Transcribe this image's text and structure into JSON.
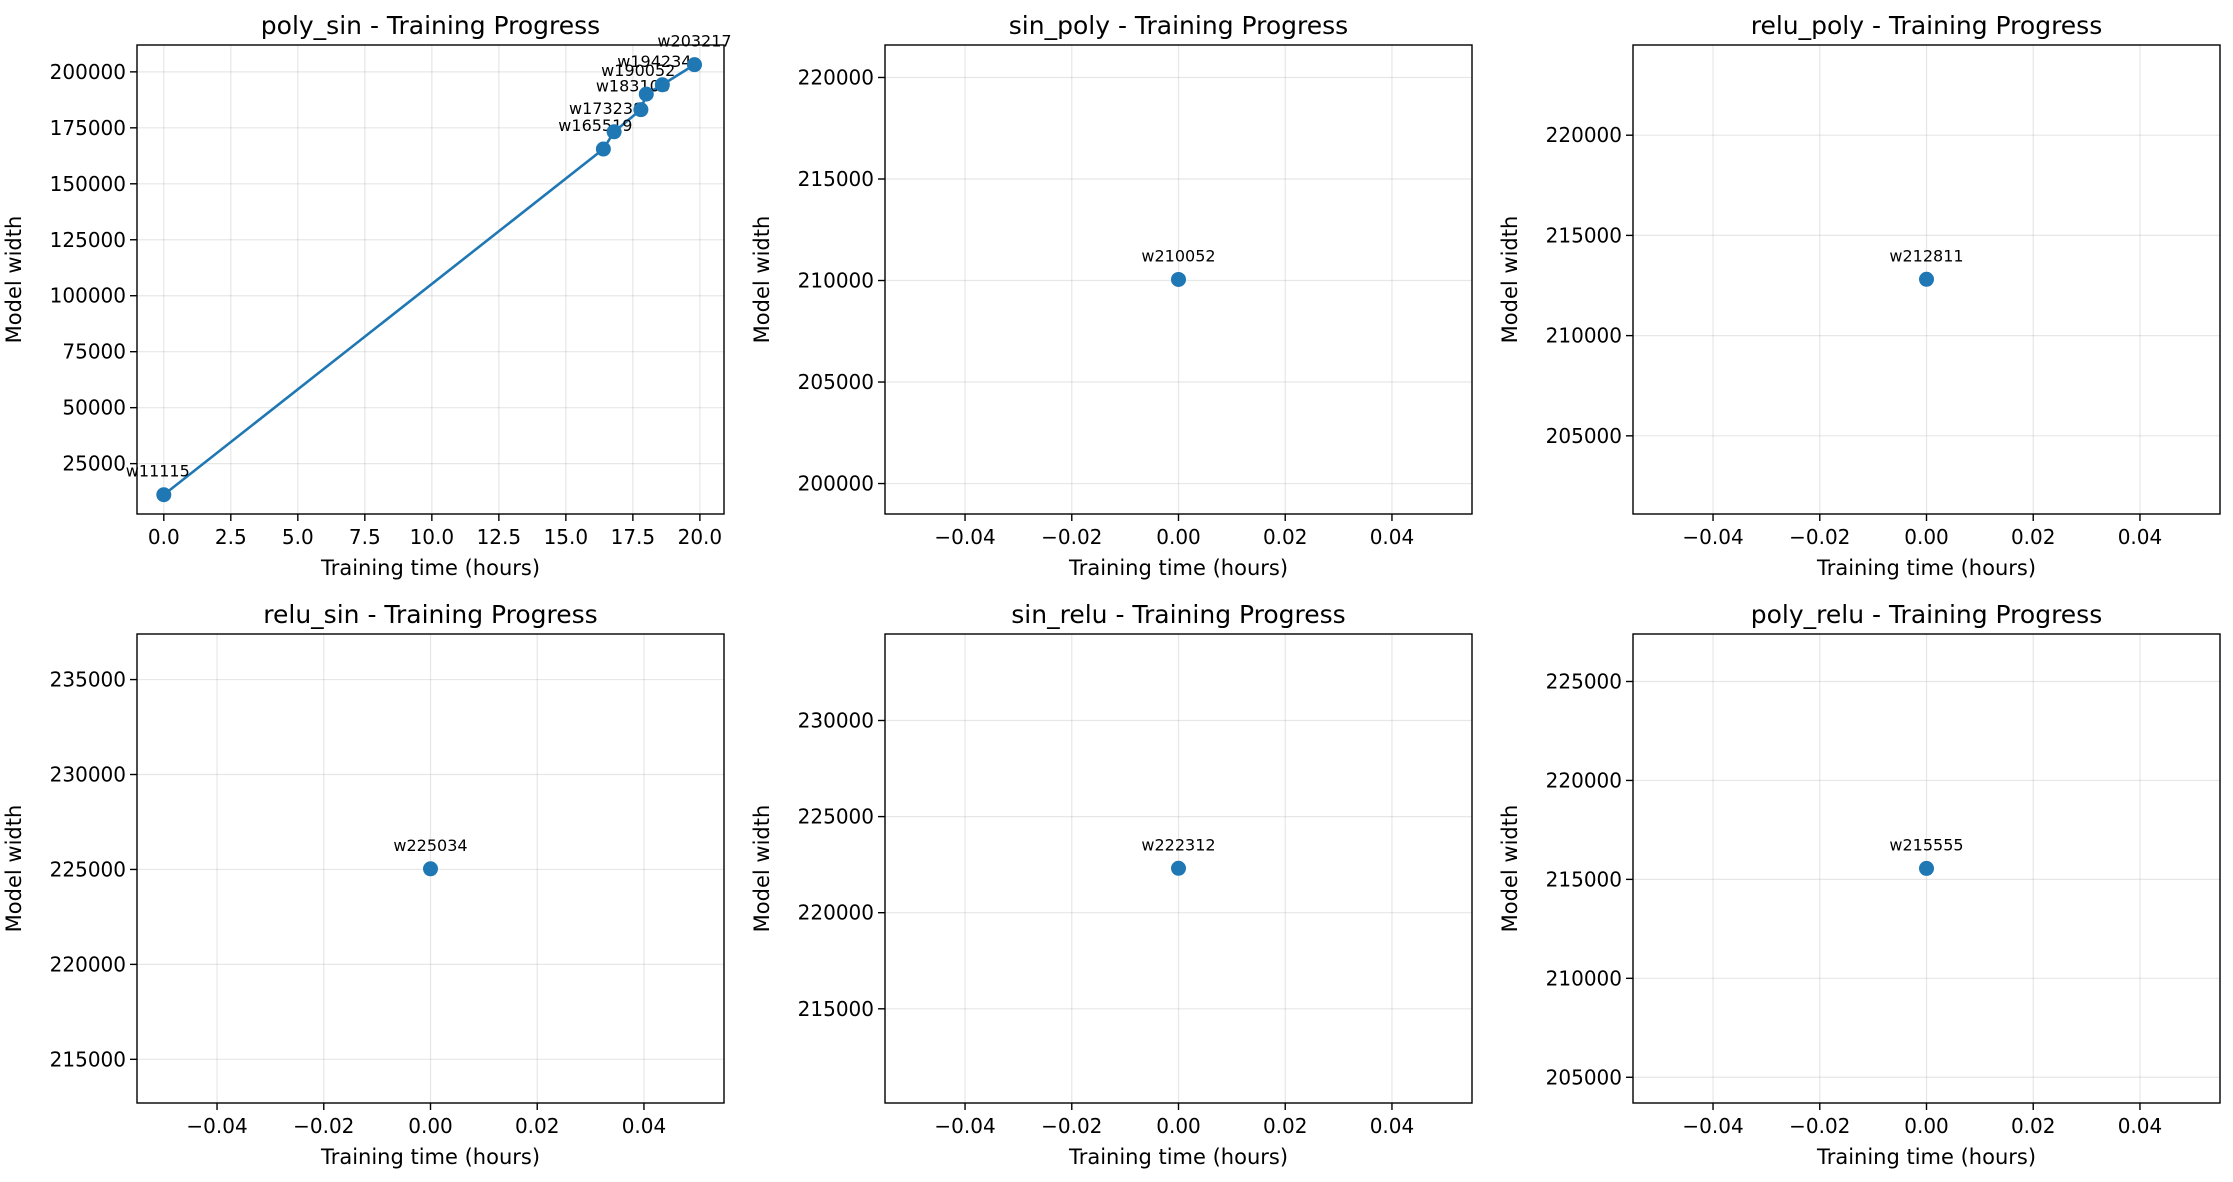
{
  "chart_data": [
    {
      "type": "line",
      "title": "poly_sin - Training Progress",
      "xlabel": "Training time (hours)",
      "ylabel": "Model width",
      "xlim": [
        -1.0,
        20.9
      ],
      "ylim": [
        2500,
        212000
      ],
      "xticks": [
        0.0,
        2.5,
        5.0,
        7.5,
        10.0,
        12.5,
        15.0,
        17.5,
        20.0
      ],
      "xtick_labels": [
        "0.0",
        "2.5",
        "5.0",
        "7.5",
        "10.0",
        "12.5",
        "15.0",
        "17.5",
        "20.0"
      ],
      "yticks": [
        25000,
        50000,
        75000,
        100000,
        125000,
        150000,
        175000,
        200000
      ],
      "ytick_labels": [
        "25000",
        "50000",
        "75000",
        "100000",
        "125000",
        "150000",
        "175000",
        "200000"
      ],
      "grid": true,
      "color": "#1f77b4",
      "points": [
        {
          "x": 0.0,
          "y": 11115,
          "label": "w11115"
        },
        {
          "x": 16.4,
          "y": 165519,
          "label": "w165519"
        },
        {
          "x": 16.8,
          "y": 173238,
          "label": "w173238"
        },
        {
          "x": 17.8,
          "y": 183106,
          "label": "w183106"
        },
        {
          "x": 18.0,
          "y": 190052,
          "label": "w190052"
        },
        {
          "x": 18.6,
          "y": 194234,
          "label": "w194234"
        },
        {
          "x": 19.8,
          "y": 203217,
          "label": "w203217"
        }
      ]
    },
    {
      "type": "scatter",
      "title": "sin_poly - Training Progress",
      "xlabel": "Training time (hours)",
      "ylabel": "Model width",
      "xlim": [
        -0.055,
        0.055
      ],
      "ylim": [
        198500,
        221600
      ],
      "xticks": [
        -0.04,
        -0.02,
        0.0,
        0.02,
        0.04
      ],
      "xtick_labels": [
        "−0.04",
        "−0.02",
        "0.00",
        "0.02",
        "0.04"
      ],
      "yticks": [
        200000,
        205000,
        210000,
        215000,
        220000
      ],
      "ytick_labels": [
        "200000",
        "205000",
        "210000",
        "215000",
        "220000"
      ],
      "grid": true,
      "color": "#1f77b4",
      "points": [
        {
          "x": 0.0,
          "y": 210052,
          "label": "w210052"
        }
      ]
    },
    {
      "type": "scatter",
      "title": "relu_poly - Training Progress",
      "xlabel": "Training time (hours)",
      "ylabel": "Model width",
      "xlim": [
        -0.055,
        0.055
      ],
      "ylim": [
        201100,
        224500
      ],
      "xticks": [
        -0.04,
        -0.02,
        0.0,
        0.02,
        0.04
      ],
      "xtick_labels": [
        "−0.04",
        "−0.02",
        "0.00",
        "0.02",
        "0.04"
      ],
      "yticks": [
        205000,
        210000,
        215000,
        220000
      ],
      "ytick_labels": [
        "205000",
        "210000",
        "215000",
        "220000"
      ],
      "grid": true,
      "color": "#1f77b4",
      "points": [
        {
          "x": 0.0,
          "y": 212811,
          "label": "w212811"
        }
      ]
    },
    {
      "type": "scatter",
      "title": "relu_sin - Training Progress",
      "xlabel": "Training time (hours)",
      "ylabel": "Model width",
      "xlim": [
        -0.055,
        0.055
      ],
      "ylim": [
        212700,
        237400
      ],
      "xticks": [
        -0.04,
        -0.02,
        0.0,
        0.02,
        0.04
      ],
      "xtick_labels": [
        "−0.04",
        "−0.02",
        "0.00",
        "0.02",
        "0.04"
      ],
      "yticks": [
        215000,
        220000,
        225000,
        230000,
        235000
      ],
      "ytick_labels": [
        "215000",
        "220000",
        "225000",
        "230000",
        "235000"
      ],
      "grid": true,
      "color": "#1f77b4",
      "points": [
        {
          "x": 0.0,
          "y": 225034,
          "label": "w225034"
        }
      ]
    },
    {
      "type": "scatter",
      "title": "sin_relu - Training Progress",
      "xlabel": "Training time (hours)",
      "ylabel": "Model width",
      "xlim": [
        -0.055,
        0.055
      ],
      "ylim": [
        210100,
        234500
      ],
      "xticks": [
        -0.04,
        -0.02,
        0.0,
        0.02,
        0.04
      ],
      "xtick_labels": [
        "−0.04",
        "−0.02",
        "0.00",
        "0.02",
        "0.04"
      ],
      "yticks": [
        215000,
        220000,
        225000,
        230000
      ],
      "ytick_labels": [
        "215000",
        "220000",
        "225000",
        "230000"
      ],
      "grid": true,
      "color": "#1f77b4",
      "points": [
        {
          "x": 0.0,
          "y": 222312,
          "label": "w222312"
        }
      ]
    },
    {
      "type": "scatter",
      "title": "poly_relu - Training Progress",
      "xlabel": "Training time (hours)",
      "ylabel": "Model width",
      "xlim": [
        -0.055,
        0.055
      ],
      "ylim": [
        203700,
        227400
      ],
      "xticks": [
        -0.04,
        -0.02,
        0.0,
        0.02,
        0.04
      ],
      "xtick_labels": [
        "−0.04",
        "−0.02",
        "0.00",
        "0.02",
        "0.04"
      ],
      "yticks": [
        205000,
        210000,
        215000,
        220000,
        225000
      ],
      "ytick_labels": [
        "205000",
        "210000",
        "215000",
        "220000",
        "225000"
      ],
      "grid": true,
      "color": "#1f77b4",
      "points": [
        {
          "x": 0.0,
          "y": 215555,
          "label": "w215555"
        }
      ]
    }
  ]
}
